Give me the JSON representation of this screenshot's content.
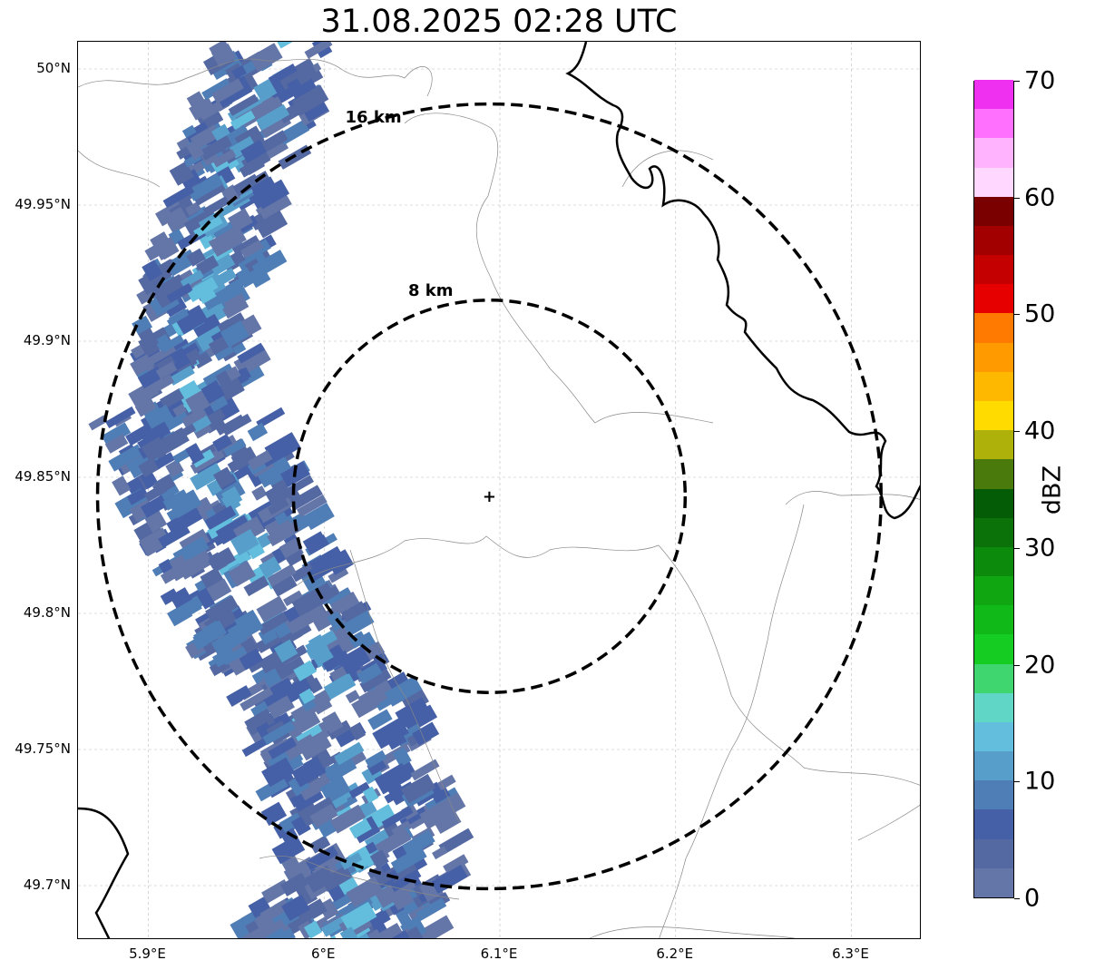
{
  "title": "31.08.2025 02:28 UTC",
  "map": {
    "lon_range": [
      5.86,
      6.34
    ],
    "lat_range": [
      49.68,
      50.01
    ],
    "center": {
      "lon": 6.094,
      "lat": 49.843
    },
    "rings": [
      {
        "label": "8 km",
        "radius_km": 8
      },
      {
        "label": "16 km",
        "radius_km": 16
      }
    ],
    "lat_ticks": [
      {
        "value": 50.0,
        "label": "50°N"
      },
      {
        "value": 49.95,
        "label": "49.95°N"
      },
      {
        "value": 49.9,
        "label": "49.9°N"
      },
      {
        "value": 49.85,
        "label": "49.85°N"
      },
      {
        "value": 49.8,
        "label": "49.8°N"
      },
      {
        "value": 49.75,
        "label": "49.75°N"
      },
      {
        "value": 49.7,
        "label": "49.7°N"
      }
    ],
    "lon_ticks": [
      {
        "value": 5.9,
        "label": "5.9°E"
      },
      {
        "value": 6.0,
        "label": "6°E"
      },
      {
        "value": 6.1,
        "label": "6.1°E"
      },
      {
        "value": 6.2,
        "label": "6.2°E"
      },
      {
        "value": 6.3,
        "label": "6.3°E"
      }
    ],
    "grid": true,
    "precipitation_band": "southwest-northwest, 0-15 dBZ"
  },
  "colorbar": {
    "unit": "dBZ",
    "min": 0,
    "max": 70,
    "ticks": [
      "0",
      "10",
      "20",
      "30",
      "40",
      "50",
      "60",
      "70"
    ],
    "colors": [
      "#6476a8",
      "#5468a2",
      "#4560a6",
      "#4f7db6",
      "#579fca",
      "#63bddd",
      "#60d6c6",
      "#3fd56f",
      "#14cc22",
      "#10b818",
      "#0fa612",
      "#0c8a0c",
      "#0a7209",
      "#055c06",
      "#4b7a0c",
      "#aeb10a",
      "#ffdb00",
      "#ffb800",
      "#ff9a00",
      "#ff7a00",
      "#e60000",
      "#c40000",
      "#a20000",
      "#7a0000",
      "#ffd7ff",
      "#ffb3ff",
      "#ff70ff",
      "#f030f0"
    ]
  }
}
